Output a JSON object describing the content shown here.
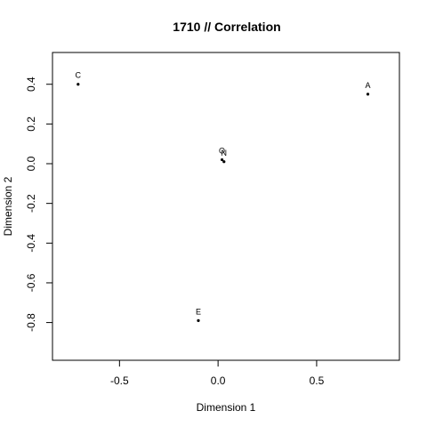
{
  "chart_data": {
    "type": "scatter",
    "title": "1710 // Correlation",
    "xlabel": "Dimension 1",
    "ylabel": "Dimension 2",
    "xlim": [
      -0.84,
      0.92
    ],
    "ylim": [
      -0.99,
      0.56
    ],
    "xticks": [
      -0.5,
      0.0,
      0.5
    ],
    "yticks": [
      0.4,
      0.2,
      0.0,
      -0.2,
      -0.4,
      -0.6,
      -0.8
    ],
    "xtick_labels": [
      "-0.5",
      "0.0",
      "0.5"
    ],
    "ytick_labels": [
      "0.4",
      "0.2",
      "0.0",
      "-0.2",
      "-0.4",
      "-0.6",
      "-0.8"
    ],
    "grid": false,
    "points": [
      {
        "label": "C",
        "x": -0.71,
        "y": 0.4
      },
      {
        "label": "A",
        "x": 0.76,
        "y": 0.35
      },
      {
        "label": "O",
        "x": 0.02,
        "y": 0.02
      },
      {
        "label": "N",
        "x": 0.03,
        "y": 0.01
      },
      {
        "label": "E",
        "x": -0.1,
        "y": -0.79
      }
    ]
  }
}
